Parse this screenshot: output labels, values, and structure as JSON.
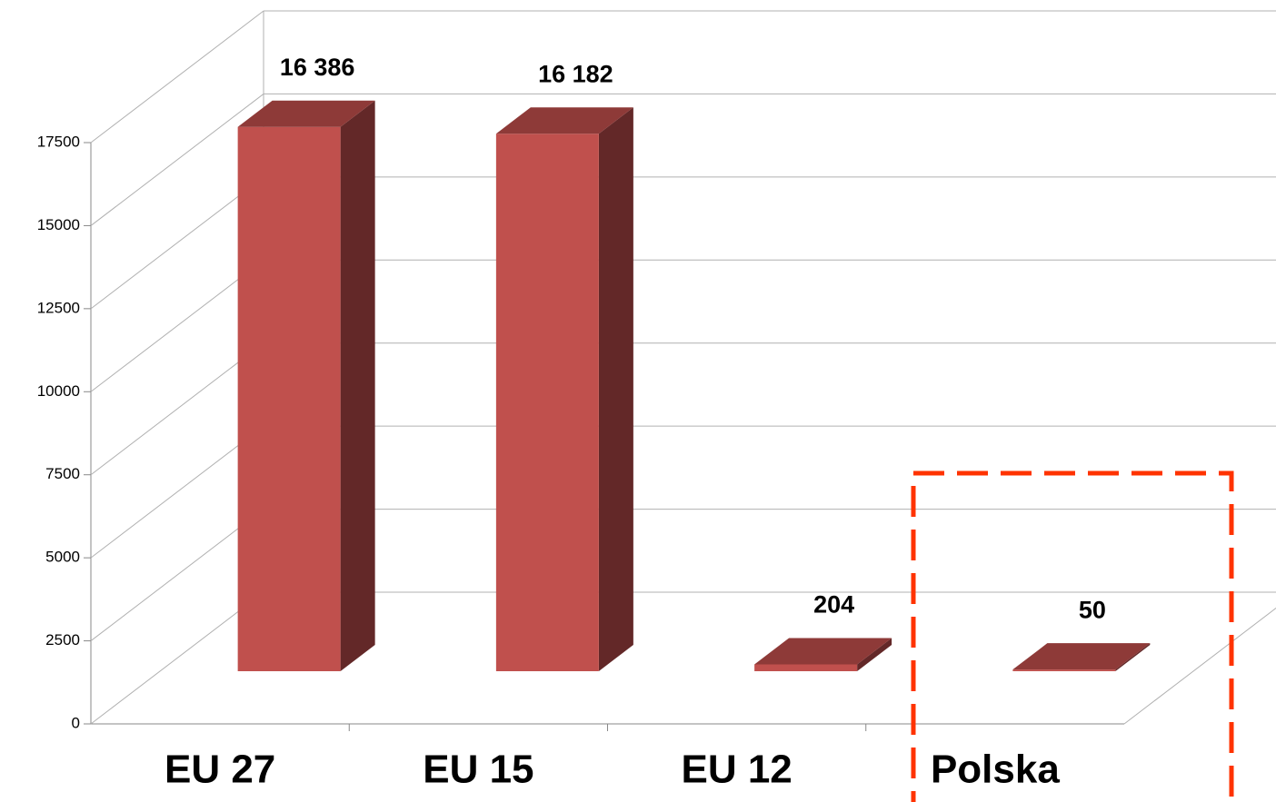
{
  "chart_data": {
    "type": "bar3d",
    "categories": [
      "EU 27",
      "EU 15",
      "EU 12",
      "Polska"
    ],
    "values": [
      16386,
      16182,
      204,
      50
    ],
    "value_labels": [
      "16 386",
      "16 182",
      "204",
      "50"
    ],
    "color": "#c0504d",
    "ylim": [
      0,
      17500
    ],
    "yticks": [
      0,
      2500,
      5000,
      7500,
      10000,
      12500,
      15000,
      17500
    ],
    "grid": true
  }
}
